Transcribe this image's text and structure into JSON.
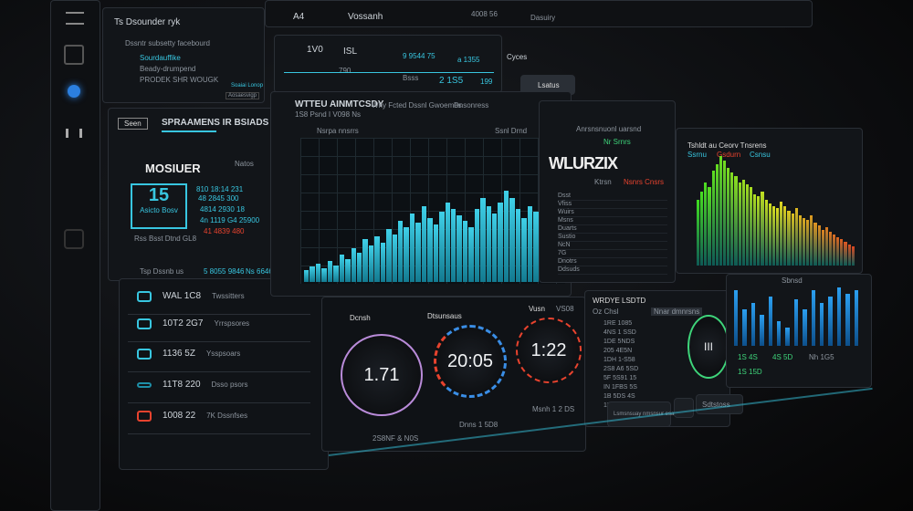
{
  "sidebar_tools": [
    "menu",
    "layers",
    "record",
    "grid",
    "settings"
  ],
  "top_panel": {
    "title": "Ts Dsounder ryk",
    "subtitle": "Dssntr subsetty facebourd",
    "items": [
      "Sourdauffike",
      "Beady-drumpend",
      "PRODEK SHR WOUGK"
    ],
    "link": "Soaiai Lonop",
    "button": "Aosaesvigp"
  },
  "header": {
    "tabs": [
      "A4",
      "Vossanh",
      "4008 56",
      "Dasuiry",
      "Cyces"
    ],
    "row1": [
      "1V0",
      "ISL",
      "9 9544 75",
      "a 1355"
    ],
    "row2": [
      "790",
      "Bsss",
      "2 1S5",
      "199"
    ],
    "search": "Lsatus"
  },
  "streams": {
    "button": "Seen",
    "title": "SPRAAMENS IR BSIADS",
    "filter": "Natos",
    "monitor": "MOSIUER",
    "big_value": "15",
    "big_caption": "Asicto Bosv",
    "caption": "Rss Bsst Dtnd GL8",
    "lines": [
      "810 18:14 231",
      "48 2845 300",
      "4814 2930 18",
      "4n 1119 G4 25900"
    ],
    "alert": "41 4839 480",
    "footer": [
      "Tsp Dssnb us",
      "5 8055 9846",
      "Ns 6646"
    ]
  },
  "list_rows": [
    {
      "value": "WAL 1C8",
      "label": "Twssitters",
      "color": "#38c6e0"
    },
    {
      "value": "10T2 2G7",
      "label": "Yrrspsores",
      "color": "#38c6e0"
    },
    {
      "value": "1136 5Z",
      "label": "Ysspsoars",
      "color": "#38c6e0"
    },
    {
      "value": "11T8 220",
      "label": "Dsso psors",
      "color": "#38c6e0"
    },
    {
      "value": "1008 22",
      "label": "7K Dssnfses",
      "color": "#e8432e"
    }
  ],
  "main_chart": {
    "title": "WTTEU AINMTCSDY",
    "subtitle": "Why Fcted Dssnl Gwoemes",
    "meta": "1S8 Psnd I V098 Ns",
    "legend": "Nsrpa nnsrrs",
    "panel_label": "Dnsonress",
    "panel_title": "Ssnl Drnd"
  },
  "center": {
    "logo": "WLURZIX",
    "header": "Anrsnsnuonl uarsnd",
    "status": "Nr Srnrs",
    "filter": "Ktrsn",
    "badge": "Nsnrs Cnsrs",
    "rows": [
      "Dsst",
      "Vfiss",
      "Wuirs",
      "Msns",
      "Duarts",
      "Sustio",
      "NcN",
      "7G",
      "Dnotrs",
      "Ddsuds"
    ]
  },
  "right_chart": {
    "title": "Tshldt au Ceorv Tnsrens",
    "tabs": [
      "Ssrnu",
      "Gsdurn",
      "Csnsu"
    ]
  },
  "gauges": [
    {
      "label": "Dcnsh",
      "value": "1.71",
      "caption": "2S8NF & N0S",
      "color": "#b98bd9"
    },
    {
      "label": "Dtsunsaus",
      "value": "20:05",
      "caption": "Dnns 1 5D8",
      "color": "#3a8ee6"
    },
    {
      "label": "Vusn",
      "value": "1:22",
      "caption": "Msnh 1 2 DS",
      "color": "#e8432e",
      "extra": "VS08"
    }
  ],
  "stats": {
    "title": "WRDYE LSDTD",
    "filter": "Oz Chsl",
    "button": "Nnar dmnrsns",
    "lines": [
      "1RE 1085",
      "4NS 1 SSD",
      "1DE 5NDS",
      "205 4E5N",
      "1DH 1-S58",
      "2S8 A6 5SD",
      "5F 5S91 15",
      "IN 1FBS 5S",
      "1B 5DS 4S",
      "1NF 8D S5"
    ],
    "action": "Lsmsnsuay nmsnsur esad",
    "action2": "Sdtstoss",
    "gauge_value": "III"
  },
  "blue_chart": {
    "tab": "Sbnsd",
    "readouts": [
      "1S 4S",
      "4S 5D",
      "Nh 1G5",
      "1S 15D"
    ]
  },
  "chart_data": [
    {
      "type": "bar",
      "values": [
        8,
        10,
        12,
        9,
        14,
        11,
        18,
        15,
        22,
        19,
        28,
        24,
        30,
        26,
        35,
        31,
        40,
        36,
        45,
        39,
        50,
        42,
        38,
        46,
        52,
        48,
        44,
        40,
        36,
        48,
        55,
        50,
        45,
        52,
        60,
        55,
        48,
        42,
        50,
        46,
        40,
        35,
        30,
        26
      ]
    },
    {
      "type": "bar",
      "values": [
        55,
        62,
        70,
        66,
        80,
        85,
        92,
        88,
        82,
        78,
        75,
        70,
        72,
        68,
        66,
        60,
        58,
        62,
        55,
        52,
        50,
        48,
        54,
        50,
        46,
        44,
        48,
        42,
        40,
        38,
        42,
        36,
        34,
        30,
        32,
        28,
        26,
        24,
        22,
        20,
        18,
        16
      ]
    },
    {
      "type": "bar",
      "values": [
        90,
        60,
        70,
        50,
        80,
        40,
        30,
        75,
        60,
        90,
        70,
        80,
        95,
        85,
        90
      ]
    }
  ],
  "colors": {
    "accent": "#38c6e0",
    "alert": "#e8432e",
    "success": "#3ed47a",
    "blue": "#2b8fe0"
  }
}
